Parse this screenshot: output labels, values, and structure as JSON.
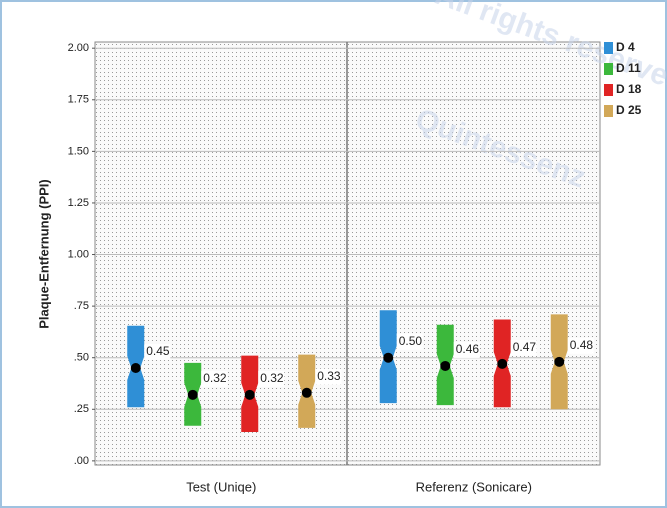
{
  "chart_data": {
    "type": "box",
    "ylabel": "Plaque-Entfernung (PPI)",
    "categories": [
      "Test (Uniqe)",
      "Referenz (Sonicare)"
    ],
    "ylim": [
      -0.02,
      2.03
    ],
    "yticks": [
      {
        "value": 0,
        "label": ".00"
      },
      {
        "value": 0.25,
        "label": ".25"
      },
      {
        "value": 0.5,
        "label": ".50"
      },
      {
        "value": 0.75,
        "label": ".75"
      },
      {
        "value": 1,
        "label": "1.00"
      },
      {
        "value": 1.25,
        "label": "1.25"
      },
      {
        "value": 1.5,
        "label": "1.50"
      },
      {
        "value": 1.75,
        "label": "1.75"
      },
      {
        "value": 2,
        "label": "2.00"
      }
    ],
    "grid": true,
    "legend": "right",
    "series": [
      {
        "name": "D 4",
        "color": "#2f8fd6",
        "q1": [
          0.26,
          0.28
        ],
        "q3": [
          0.655,
          0.73
        ],
        "values": [
          0.45,
          0.5
        ],
        "value_labels": [
          "0.45",
          "0.50"
        ]
      },
      {
        "name": "D 11",
        "color": "#3cb83c",
        "q1": [
          0.17,
          0.27
        ],
        "q3": [
          0.475,
          0.66
        ],
        "values": [
          0.32,
          0.46
        ],
        "value_labels": [
          "0.32",
          "0.46"
        ]
      },
      {
        "name": "D 18",
        "color": "#e02424",
        "q1": [
          0.14,
          0.26
        ],
        "q3": [
          0.51,
          0.685
        ],
        "values": [
          0.32,
          0.47
        ],
        "value_labels": [
          "0.32",
          "0.47"
        ]
      },
      {
        "name": "D 25",
        "color": "#d2a858",
        "q1": [
          0.16,
          0.25
        ],
        "q3": [
          0.515,
          0.71
        ],
        "values": [
          0.33,
          0.48
        ],
        "value_labels": [
          "0.33",
          "0.48"
        ]
      }
    ],
    "watermark": [
      "All rights reserved",
      "Quintessenz"
    ]
  }
}
